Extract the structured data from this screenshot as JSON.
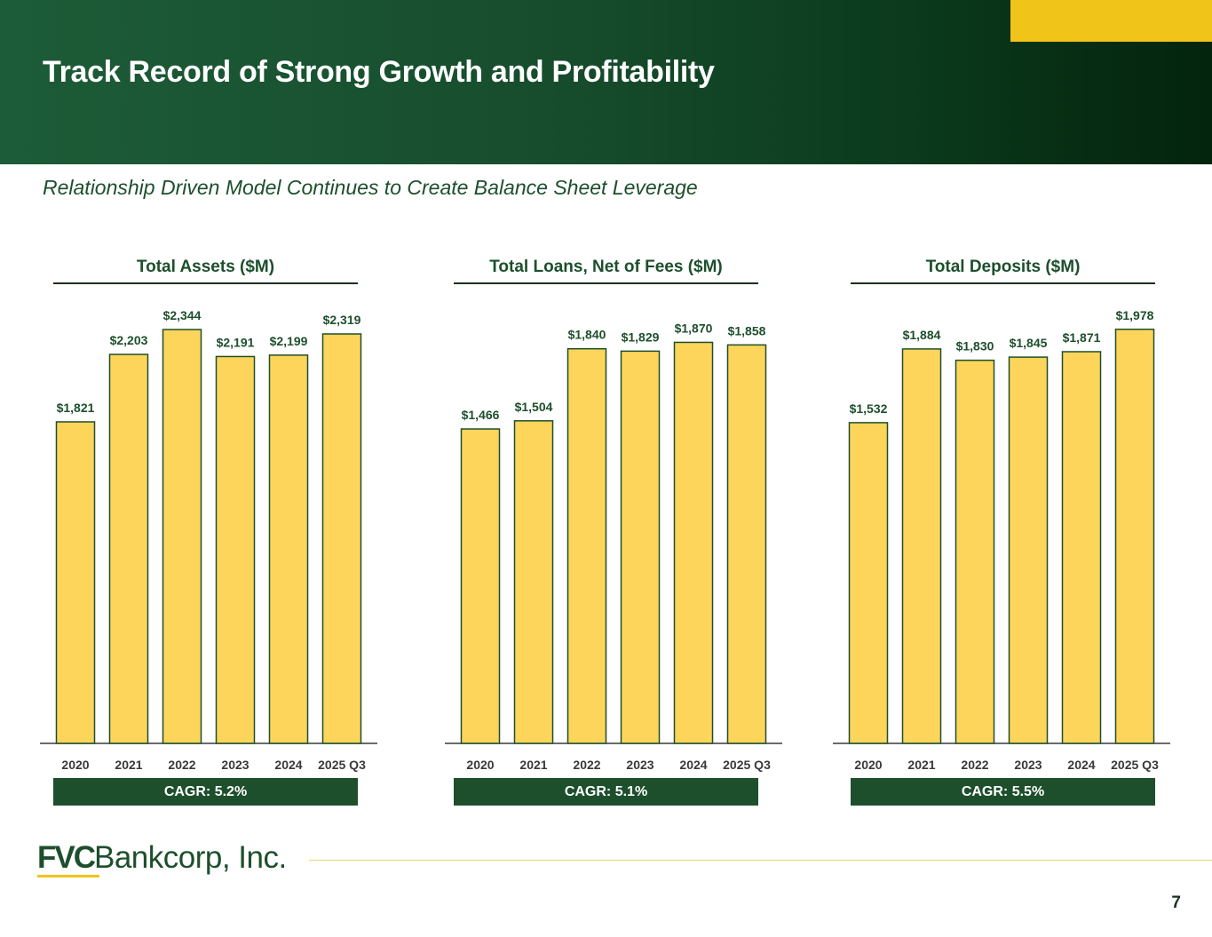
{
  "header": {
    "title": "Track Record of Strong Growth and Profitability",
    "subtitle": "Relationship Driven Model Continues to Create Balance Sheet Leverage",
    "colors": {
      "brand_green": "#1d4f2c",
      "accent_gold": "#f1c419",
      "bar_fill": "#fdd55b"
    }
  },
  "chart_data": [
    {
      "type": "bar",
      "title": "Total Assets ($M)",
      "categories": [
        "2020",
        "2021",
        "2022",
        "2023",
        "2024",
        "2025 Q3"
      ],
      "values": [
        1821,
        2203,
        2344,
        2191,
        2199,
        2319
      ],
      "data_labels": [
        "$1,821",
        "$2,203",
        "$2,344",
        "$2,191",
        "$2,199",
        "$2,319"
      ],
      "xlabel": "",
      "ylabel": "",
      "ylim": [
        0,
        2490
      ],
      "cagr": "CAGR: 5.2%"
    },
    {
      "type": "bar",
      "title": "Total Loans, Net of Fees ($M)",
      "categories": [
        "2020",
        "2021",
        "2022",
        "2023",
        "2024",
        "2025 Q3"
      ],
      "values": [
        1466,
        1504,
        1840,
        1829,
        1870,
        1858
      ],
      "data_labels": [
        "$1,466",
        "$1,504",
        "$1,840",
        "$1,829",
        "$1,870",
        "$1,858"
      ],
      "xlabel": "",
      "ylabel": "",
      "ylim": [
        0,
        2050
      ],
      "cagr": "CAGR: 5.1%"
    },
    {
      "type": "bar",
      "title": "Total Deposits ($M)",
      "categories": [
        "2020",
        "2021",
        "2022",
        "2023",
        "2024",
        "2025 Q3"
      ],
      "values": [
        1532,
        1884,
        1830,
        1845,
        1871,
        1978
      ],
      "data_labels": [
        "$1,532",
        "$1,884",
        "$1,830",
        "$1,845",
        "$1,871",
        "$1,978"
      ],
      "xlabel": "",
      "ylabel": "",
      "ylim": [
        0,
        2100
      ],
      "cagr": "CAGR: 5.5%"
    }
  ],
  "footer": {
    "logo_text_strong": "FVC",
    "logo_text": "Bankcorp, Inc.",
    "page_number": "7"
  }
}
